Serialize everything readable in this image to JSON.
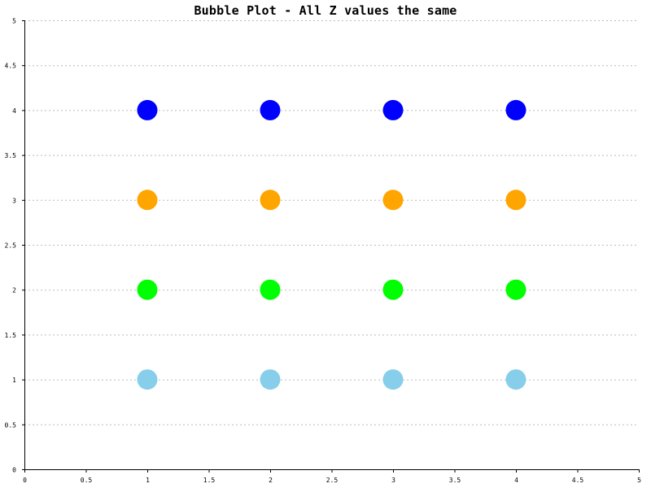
{
  "chart_data": {
    "type": "scatter",
    "subtype": "bubble",
    "title": "Bubble Plot - All Z values the same",
    "xlabel": "",
    "ylabel": "",
    "xlim": [
      0,
      5
    ],
    "ylim": [
      0,
      5
    ],
    "x_ticks": [
      "0",
      "0.5",
      "1",
      "1.5",
      "2",
      "2.5",
      "3",
      "3.5",
      "4",
      "4.5",
      "5"
    ],
    "y_ticks": [
      "0",
      "0.5",
      "1",
      "1.5",
      "2",
      "2.5",
      "3",
      "3.5",
      "4",
      "4.5",
      "5"
    ],
    "grid": "horizontal-dashed",
    "legend": "none",
    "series": [
      {
        "color": "#87CEEB",
        "x": [
          1,
          2,
          3,
          4
        ],
        "y": [
          1,
          1,
          1,
          1
        ],
        "z": [
          1,
          1,
          1,
          1
        ]
      },
      {
        "color": "#00FF00",
        "x": [
          1,
          2,
          3,
          4
        ],
        "y": [
          2,
          2,
          2,
          2
        ],
        "z": [
          1,
          1,
          1,
          1
        ]
      },
      {
        "color": "#FFA500",
        "x": [
          1,
          2,
          3,
          4
        ],
        "y": [
          3,
          3,
          3,
          3
        ],
        "z": [
          1,
          1,
          1,
          1
        ]
      },
      {
        "color": "#0000FF",
        "x": [
          1,
          2,
          3,
          4
        ],
        "y": [
          4,
          4,
          4,
          4
        ],
        "z": [
          1,
          1,
          1,
          1
        ]
      }
    ]
  }
}
